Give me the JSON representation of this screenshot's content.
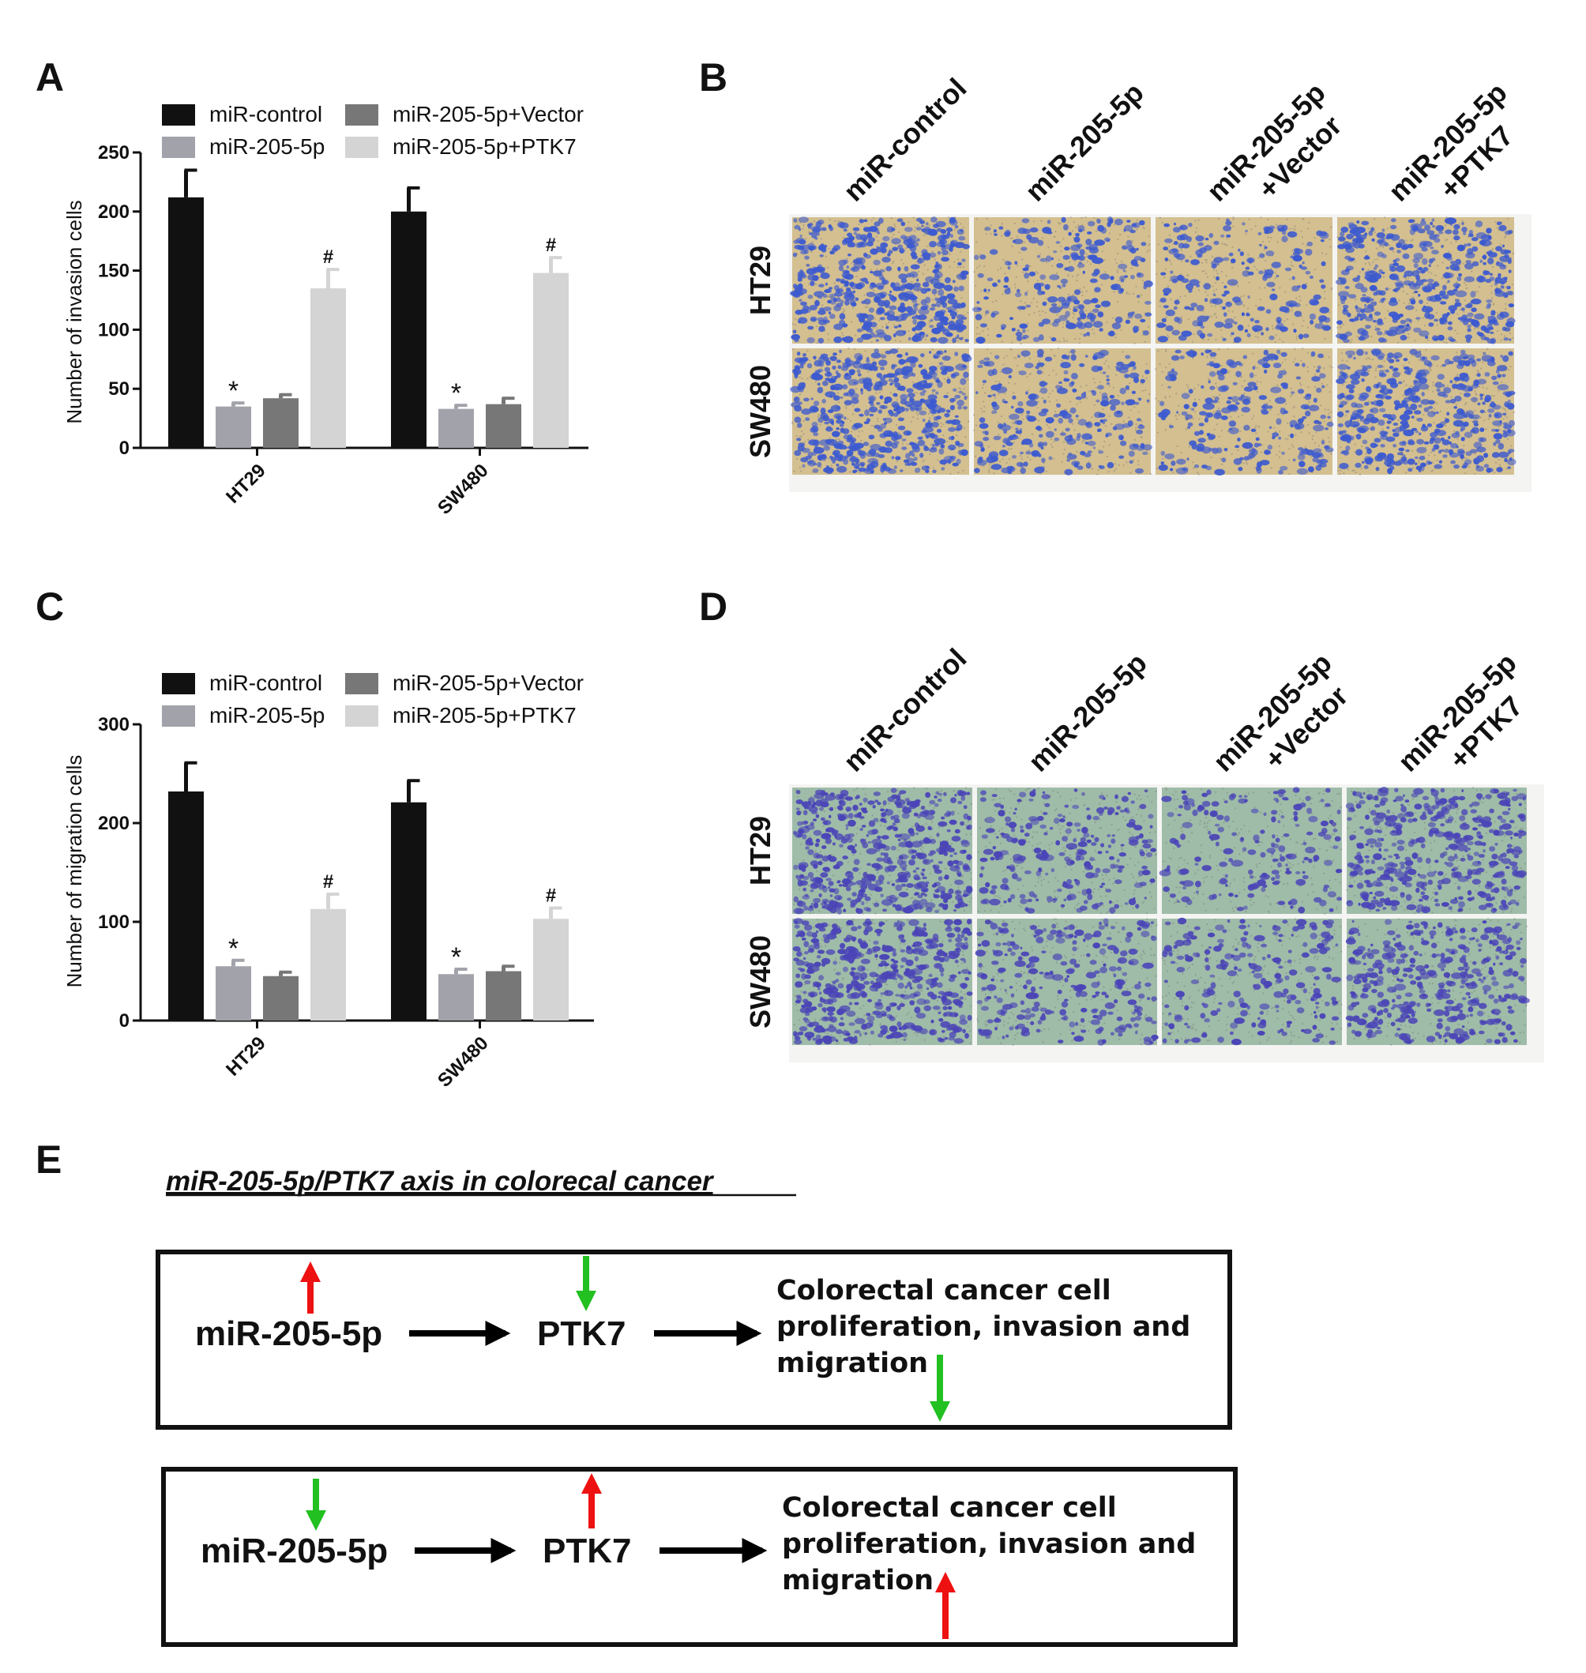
{
  "panel_labels": [
    "A",
    "B",
    "C",
    "D",
    "E"
  ],
  "colors": {
    "miR-control": "#111111",
    "miR-205-5p": "#a2a2aa",
    "miR-205-5p+Vector": "#777777",
    "miR-205-5p+PTK7": "#d4d4d4",
    "up_arrow": "#ee1111",
    "down_arrow": "#22c021",
    "invasion_bg": "#d3bf90",
    "invasion_cells": "#3c5ad0",
    "migration_bg": "#9fbca8",
    "migration_cells": "#4a44b8"
  },
  "chart_data": [
    {
      "type": "bar",
      "panel": "A",
      "ylabel": "Number of invasion cells",
      "ylim": [
        0,
        250
      ],
      "yticks": [
        "0",
        "50",
        "100",
        "150",
        "200",
        "250"
      ],
      "categories": [
        "HT29",
        "SW480"
      ],
      "series": [
        {
          "name": "miR-control",
          "values": [
            212,
            200
          ],
          "errors": [
            23,
            20
          ],
          "marks": [
            "",
            ""
          ]
        },
        {
          "name": "miR-205-5p",
          "values": [
            35,
            33
          ],
          "errors": [
            3,
            3
          ],
          "marks": [
            "*",
            "*"
          ]
        },
        {
          "name": "miR-205-5p+Vector",
          "values": [
            42,
            37
          ],
          "errors": [
            3,
            5
          ],
          "marks": [
            "",
            ""
          ]
        },
        {
          "name": "miR-205-5p+PTK7",
          "values": [
            135,
            148
          ],
          "errors": [
            16,
            13
          ],
          "marks": [
            "#",
            "#"
          ]
        }
      ],
      "legend_position": "top"
    },
    {
      "type": "bar",
      "panel": "C",
      "ylabel": "Number of migration cells",
      "ylim": [
        0,
        300
      ],
      "yticks": [
        "0",
        "100",
        "200",
        "300"
      ],
      "categories": [
        "HT29",
        "SW480"
      ],
      "series": [
        {
          "name": "miR-control",
          "values": [
            232,
            221
          ],
          "errors": [
            29,
            22
          ],
          "marks": [
            "",
            ""
          ]
        },
        {
          "name": "miR-205-5p",
          "values": [
            55,
            47
          ],
          "errors": [
            6,
            5
          ],
          "marks": [
            "*",
            "*"
          ]
        },
        {
          "name": "miR-205-5p+Vector",
          "values": [
            45,
            50
          ],
          "errors": [
            4,
            5
          ],
          "marks": [
            "",
            ""
          ]
        },
        {
          "name": "miR-205-5p+PTK7",
          "values": [
            113,
            103
          ],
          "errors": [
            15,
            11
          ],
          "marks": [
            "#",
            "#"
          ]
        }
      ],
      "legend_position": "top"
    }
  ],
  "micrograph_panels": {
    "B": {
      "columns": [
        [
          "miR-control"
        ],
        [
          "miR-205-5p"
        ],
        [
          "miR-205-5p",
          "+Vector"
        ],
        [
          "miR-205-5p",
          "+PTK7"
        ]
      ],
      "rows": [
        "HT29",
        "SW480"
      ],
      "densities": [
        [
          1.0,
          0.45,
          0.4,
          0.85
        ],
        [
          1.0,
          0.5,
          0.45,
          0.85
        ]
      ]
    },
    "D": {
      "columns": [
        [
          "miR-control"
        ],
        [
          "miR-205-5p"
        ],
        [
          "miR-205-5p",
          "+Vector"
        ],
        [
          "miR-205-5p",
          "+PTK7"
        ]
      ],
      "rows": [
        "HT29",
        "SW480"
      ],
      "densities": [
        [
          1.0,
          0.45,
          0.35,
          0.8
        ],
        [
          0.95,
          0.5,
          0.4,
          0.75
        ]
      ]
    }
  },
  "axis_diagram": {
    "title": "miR-205-5p/PTK7 axis in colorecal cancer",
    "boxes": [
      {
        "mir": "miR-205-5p",
        "mir_arrow": "up",
        "target": "PTK7",
        "target_arrow": "down",
        "outcome_lines": [
          "Colorectal cancer cell",
          "proliferation, invasion and",
          "migration"
        ],
        "outcome_arrow": "down"
      },
      {
        "mir": "miR-205-5p",
        "mir_arrow": "down",
        "target": "PTK7",
        "target_arrow": "up",
        "outcome_lines": [
          "Colorectal cancer cell",
          "proliferation, invasion and",
          "migration"
        ],
        "outcome_arrow": "up"
      }
    ]
  }
}
